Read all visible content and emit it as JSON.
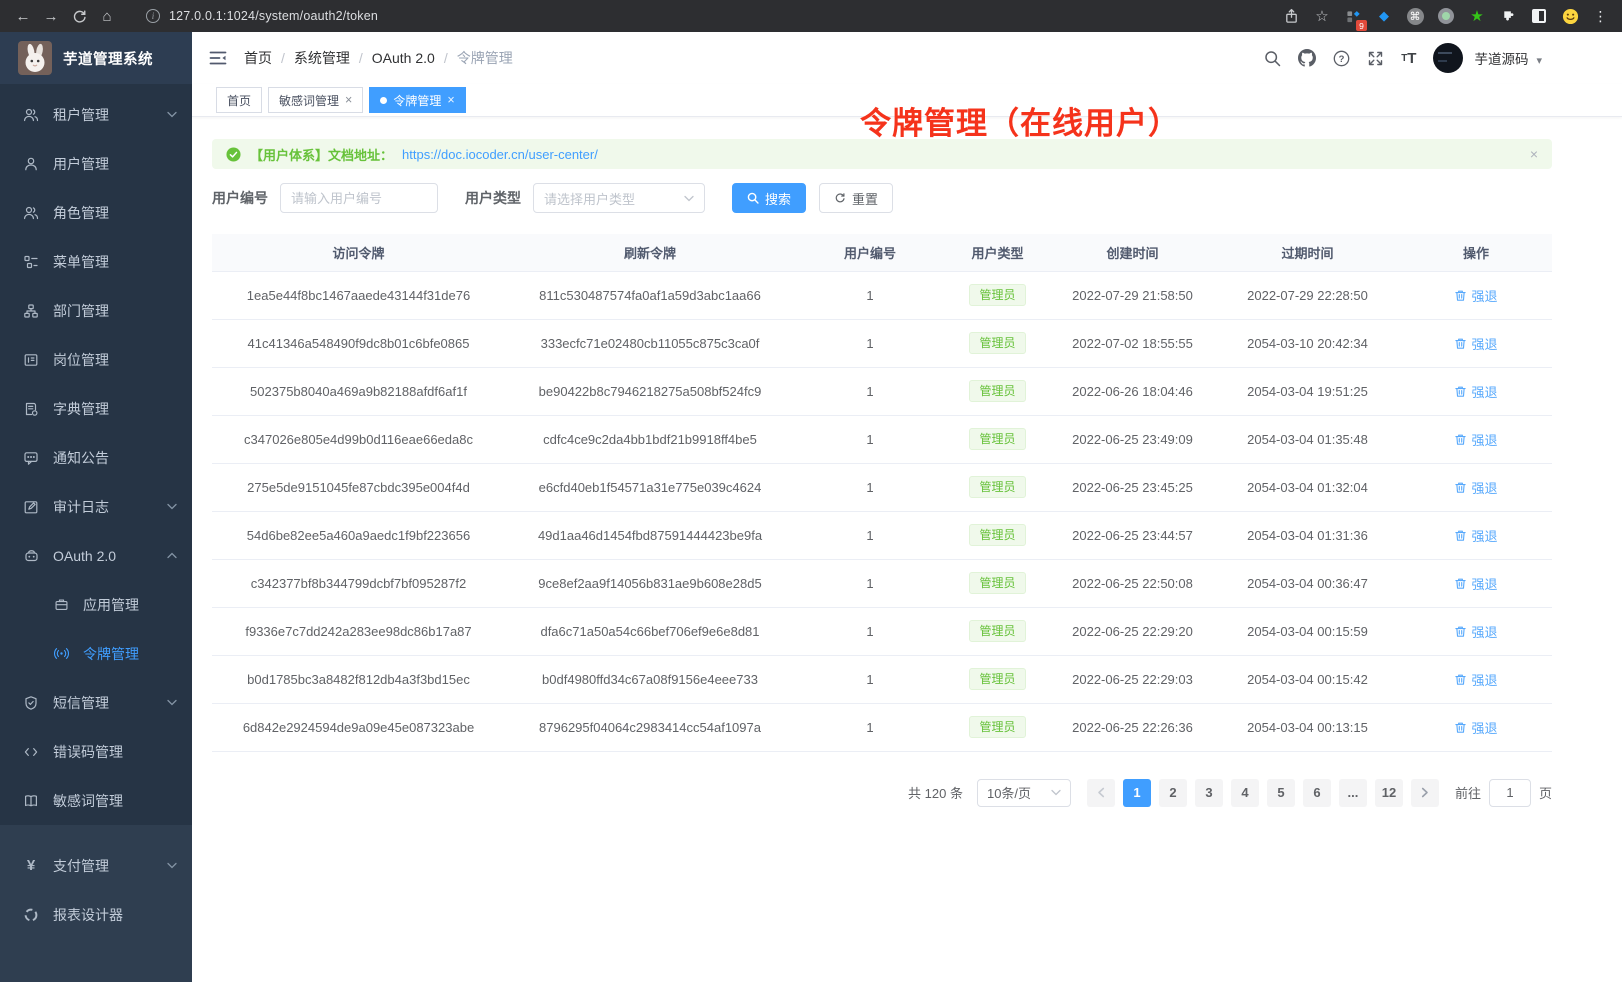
{
  "browser": {
    "url": "127.0.0.1:1024/system/oauth2/token",
    "extension_badge": "9"
  },
  "colors": {
    "accent": "#409eff",
    "success": "#67c23a",
    "annotation_red": "#f5331b",
    "sidebar_bg": "#263445",
    "action_link": "#58a9fc"
  },
  "icons": {
    "back": "←",
    "forward": "→",
    "home": "⌂",
    "star": "☆",
    "gem": "◆",
    "command": "⌘",
    "green_star": "★",
    "dots": "⋮",
    "caret": "▾",
    "close": "×",
    "yen": "¥"
  },
  "sidebar": {
    "title": "芋道管理系统",
    "items": [
      {
        "label": "租户管理"
      },
      {
        "label": "用户管理"
      },
      {
        "label": "角色管理"
      },
      {
        "label": "菜单管理"
      },
      {
        "label": "部门管理"
      },
      {
        "label": "岗位管理"
      },
      {
        "label": "字典管理"
      },
      {
        "label": "通知公告"
      },
      {
        "label": "审计日志"
      },
      {
        "label": "OAuth 2.0"
      },
      {
        "label": "应用管理"
      },
      {
        "label": "令牌管理"
      },
      {
        "label": "短信管理"
      },
      {
        "label": "错误码管理"
      },
      {
        "label": "敏感词管理"
      },
      {
        "label": "支付管理"
      },
      {
        "label": "报表设计器"
      }
    ]
  },
  "navbar": {
    "breadcrumb": [
      "首页",
      "系统管理",
      "OAuth 2.0",
      "令牌管理"
    ],
    "username": "芋道源码"
  },
  "tabs": [
    {
      "label": "首页"
    },
    {
      "label": "敏感词管理"
    },
    {
      "label": "令牌管理"
    }
  ],
  "annotation": "令牌管理（在线用户）",
  "alert": {
    "prefix": "【用户体系】文档地址：",
    "link": "https://doc.iocoder.cn/user-center/"
  },
  "filters": {
    "user_id_label": "用户编号",
    "user_id_placeholder": "请输入用户编号",
    "user_type_label": "用户类型",
    "user_type_placeholder": "请选择用户类型",
    "search_label": "搜索",
    "reset_label": "重置"
  },
  "table": {
    "headers": [
      "访问令牌",
      "刷新令牌",
      "用户编号",
      "用户类型",
      "创建时间",
      "过期时间",
      "操作"
    ],
    "rows": [
      {
        "access": "1ea5e44f8bc1467aaede43144f31de76",
        "refresh": "811c530487574fa0af1a59d3abc1aa66",
        "user_id": "1",
        "user_type": "管理员",
        "created": "2022-07-29 21:58:50",
        "expired": "2022-07-29 22:28:50",
        "action": "强退"
      },
      {
        "access": "41c41346a548490f9dc8b01c6bfe0865",
        "refresh": "333ecfc71e02480cb11055c875c3ca0f",
        "user_id": "1",
        "user_type": "管理员",
        "created": "2022-07-02 18:55:55",
        "expired": "2054-03-10 20:42:34",
        "action": "强退"
      },
      {
        "access": "502375b8040a469a9b82188afdf6af1f",
        "refresh": "be90422b8c7946218275a508bf524fc9",
        "user_id": "1",
        "user_type": "管理员",
        "created": "2022-06-26 18:04:46",
        "expired": "2054-03-04 19:51:25",
        "action": "强退"
      },
      {
        "access": "c347026e805e4d99b0d116eae66eda8c",
        "refresh": "cdfc4ce9c2da4bb1bdf21b9918ff4be5",
        "user_id": "1",
        "user_type": "管理员",
        "created": "2022-06-25 23:49:09",
        "expired": "2054-03-04 01:35:48",
        "action": "强退"
      },
      {
        "access": "275e5de9151045fe87cbdc395e004f4d",
        "refresh": "e6cfd40eb1f54571a31e775e039c4624",
        "user_id": "1",
        "user_type": "管理员",
        "created": "2022-06-25 23:45:25",
        "expired": "2054-03-04 01:32:04",
        "action": "强退"
      },
      {
        "access": "54d6be82ee5a460a9aedc1f9bf223656",
        "refresh": "49d1aa46d1454fbd87591444423be9fa",
        "user_id": "1",
        "user_type": "管理员",
        "created": "2022-06-25 23:44:57",
        "expired": "2054-03-04 01:31:36",
        "action": "强退"
      },
      {
        "access": "c342377bf8b344799dcbf7bf095287f2",
        "refresh": "9ce8ef2aa9f14056b831ae9b608e28d5",
        "user_id": "1",
        "user_type": "管理员",
        "created": "2022-06-25 22:50:08",
        "expired": "2054-03-04 00:36:47",
        "action": "强退"
      },
      {
        "access": "f9336e7c7dd242a283ee98dc86b17a87",
        "refresh": "dfa6c71a50a54c66bef706ef9e6e8d81",
        "user_id": "1",
        "user_type": "管理员",
        "created": "2022-06-25 22:29:20",
        "expired": "2054-03-04 00:15:59",
        "action": "强退"
      },
      {
        "access": "b0d1785bc3a8482f812db4a3f3bd15ec",
        "refresh": "b0df4980ffd34c67a08f9156e4eee733",
        "user_id": "1",
        "user_type": "管理员",
        "created": "2022-06-25 22:29:03",
        "expired": "2054-03-04 00:15:42",
        "action": "强退"
      },
      {
        "access": "6d842e2924594de9a09e45e087323abe",
        "refresh": "8796295f04064c2983414cc54af1097a",
        "user_id": "1",
        "user_type": "管理员",
        "created": "2022-06-25 22:26:36",
        "expired": "2054-03-04 00:13:15",
        "action": "强退"
      }
    ]
  },
  "pagination": {
    "total": "共 120 条",
    "page_size": "10条/页",
    "pages": [
      "1",
      "2",
      "3",
      "4",
      "5",
      "6",
      "...",
      "12"
    ],
    "active": "1",
    "goto_label": "前往",
    "goto_value": "1",
    "goto_unit": "页"
  }
}
